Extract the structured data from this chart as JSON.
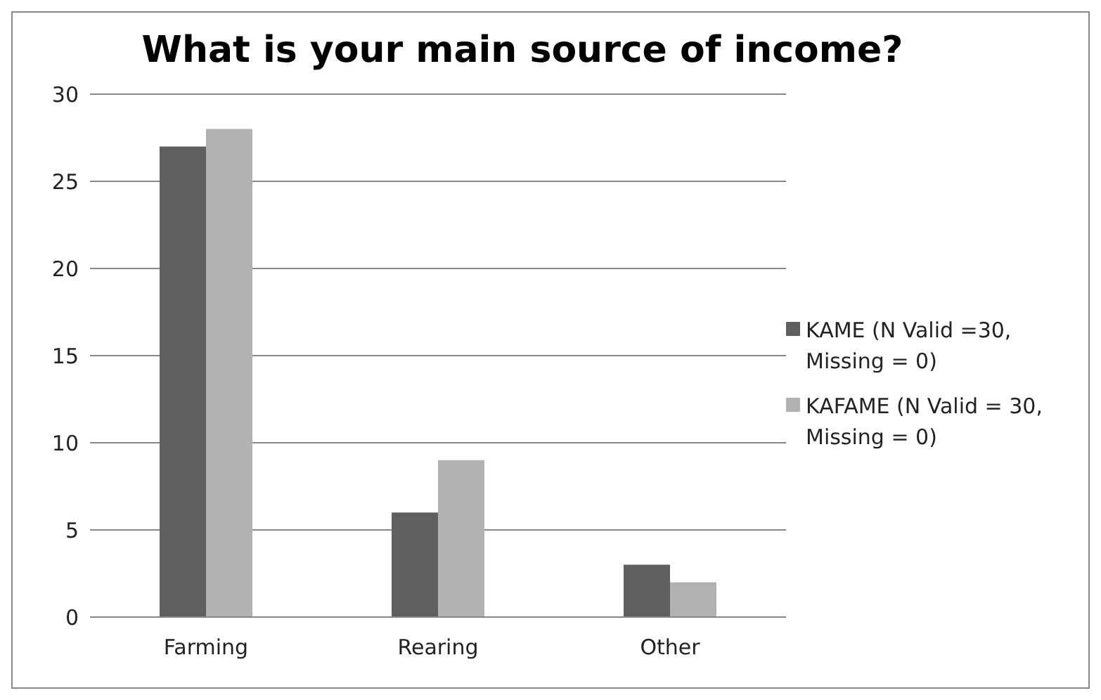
{
  "chart_data": {
    "type": "bar",
    "title": "What is your main source of income?",
    "categories": [
      "Farming",
      "Rearing",
      "Other"
    ],
    "series": [
      {
        "name": "KAME (N Valid =30, Missing = 0)",
        "color": "#5f5f5f",
        "values": [
          27,
          6,
          3
        ]
      },
      {
        "name": "KAFAME (N Valid = 30, Missing = 0)",
        "color": "#b2b2b2",
        "values": [
          28,
          9,
          2
        ]
      }
    ],
    "ylim": [
      0,
      30
    ],
    "yticks": [
      0,
      5,
      10,
      15,
      20,
      25,
      30
    ],
    "grid": "y",
    "legend": "right"
  }
}
